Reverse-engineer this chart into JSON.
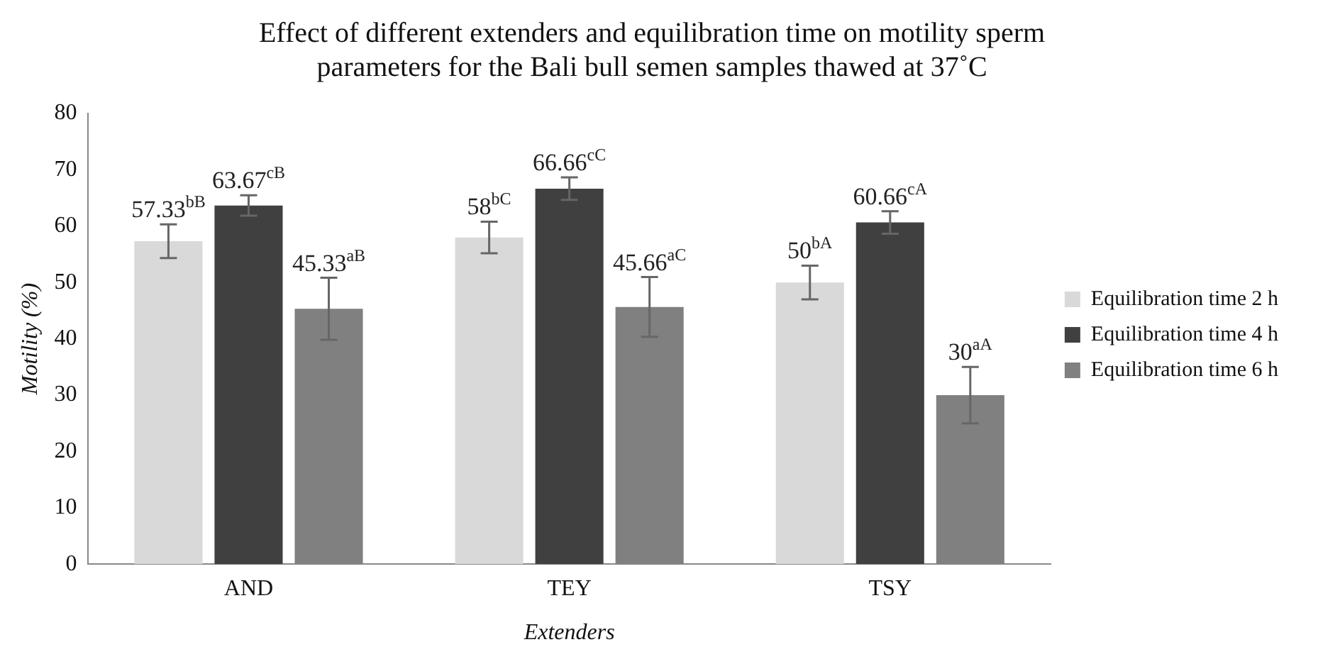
{
  "chart_data": {
    "type": "bar",
    "title": "Effect of different extenders and equilibration time on motility sperm parameters for the Bali bull semen samples thawed at 37˚C",
    "xlabel": "Extenders",
    "ylabel": "Motility (%)",
    "categories": [
      "AND",
      "TEY",
      "TSY"
    ],
    "ylim": [
      0,
      80
    ],
    "yticks": [
      0,
      10,
      20,
      30,
      40,
      50,
      60,
      70,
      80
    ],
    "grid": false,
    "legend": "right",
    "series": [
      {
        "name": "Equilibration time 2 h",
        "color": "#d9d9d9",
        "values": [
          57.33,
          58,
          50
        ],
        "errors": [
          3,
          2.8,
          3
        ],
        "value_labels": [
          "57.33$^{bB}$",
          "58$^{bC}$",
          "50$^{bA}$"
        ]
      },
      {
        "name": "Equilibration time 4 h",
        "color": "#404040",
        "values": [
          63.67,
          66.66,
          60.66
        ],
        "errors": [
          1.8,
          2,
          2
        ],
        "value_labels": [
          "63.67$^{cB}$",
          "66.66$^{cC}$",
          "60.66$^{cA}$"
        ]
      },
      {
        "name": "Equilibration time 6 h",
        "color": "#808080",
        "values": [
          45.33,
          45.66,
          30
        ],
        "errors": [
          5.5,
          5.3,
          5
        ],
        "value_labels": [
          "45.33$^{aB}$",
          "45.66$^{aC}$",
          "30$^{aA}$"
        ]
      }
    ]
  }
}
